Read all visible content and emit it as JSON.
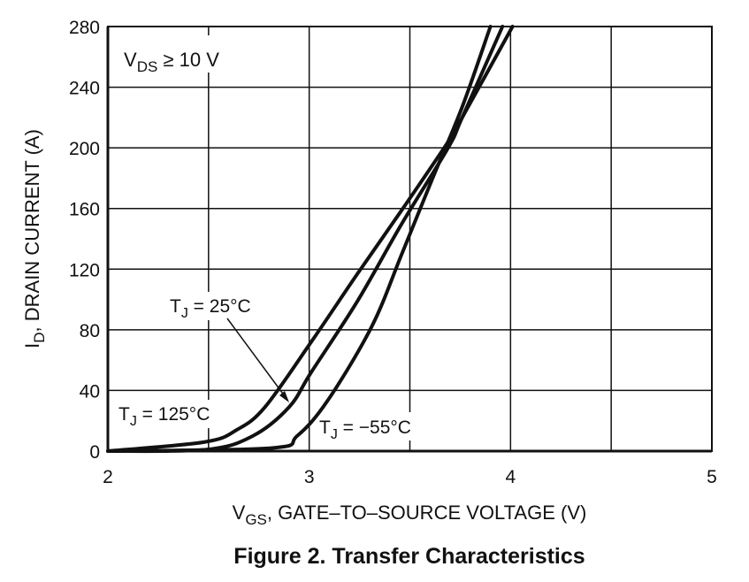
{
  "chart_data": {
    "type": "line",
    "title": "Figure 2. Transfer Characteristics",
    "xlabel": {
      "main": "V",
      "sub": "GS",
      "rest": ", GATE–TO–SOURCE VOLTAGE (V)"
    },
    "ylabel": {
      "main": "I",
      "sub": "D",
      "rest": ", DRAIN CURRENT (A)"
    },
    "xlim": [
      2,
      5
    ],
    "ylim": [
      0,
      280
    ],
    "xgrid": [
      2,
      2.5,
      3,
      3.5,
      4,
      4.5,
      5
    ],
    "ygrid": [
      0,
      40,
      80,
      120,
      160,
      200,
      240,
      280
    ],
    "xticks": [
      "2",
      "3",
      "4",
      "5"
    ],
    "xtick_values": [
      2,
      3,
      4,
      5
    ],
    "yticks": [
      "0",
      "40",
      "80",
      "120",
      "160",
      "200",
      "240",
      "280"
    ],
    "ytick_values": [
      0,
      40,
      80,
      120,
      160,
      200,
      240,
      280
    ],
    "grid": true,
    "condition": {
      "main": "V",
      "sub": "DS",
      "rest": " ≥ 10 V"
    },
    "series": [
      {
        "name": "TJ = 125°C",
        "label_main": "T",
        "label_sub": "J",
        "label_rest": " = 125°C",
        "x": [
          2.0,
          2.48,
          2.64,
          2.78,
          3.01,
          3.24,
          3.46,
          3.69,
          3.76,
          4.01
        ],
        "y": [
          0,
          6,
          14,
          29,
          72,
          117,
          159,
          204,
          220,
          280
        ]
      },
      {
        "name": "TJ = 25°C",
        "label_main": "T",
        "label_sub": "J",
        "label_rest": " = 25°C",
        "x": [
          2.0,
          2.49,
          2.72,
          2.9,
          3.01,
          3.24,
          3.46,
          3.69,
          3.76,
          3.96
        ],
        "y": [
          0,
          1,
          10,
          29,
          52,
          99,
          150,
          200,
          220,
          280
        ]
      },
      {
        "name": "TJ = −55°C",
        "label_main": "T",
        "label_sub": "J",
        "label_rest": " = −55°C",
        "x": [
          2.0,
          2.81,
          2.94,
          3.09,
          3.31,
          3.46,
          3.61,
          3.76,
          3.9
        ],
        "y": [
          0,
          2,
          10,
          33,
          82,
          130,
          179,
          227,
          280
        ]
      }
    ]
  }
}
